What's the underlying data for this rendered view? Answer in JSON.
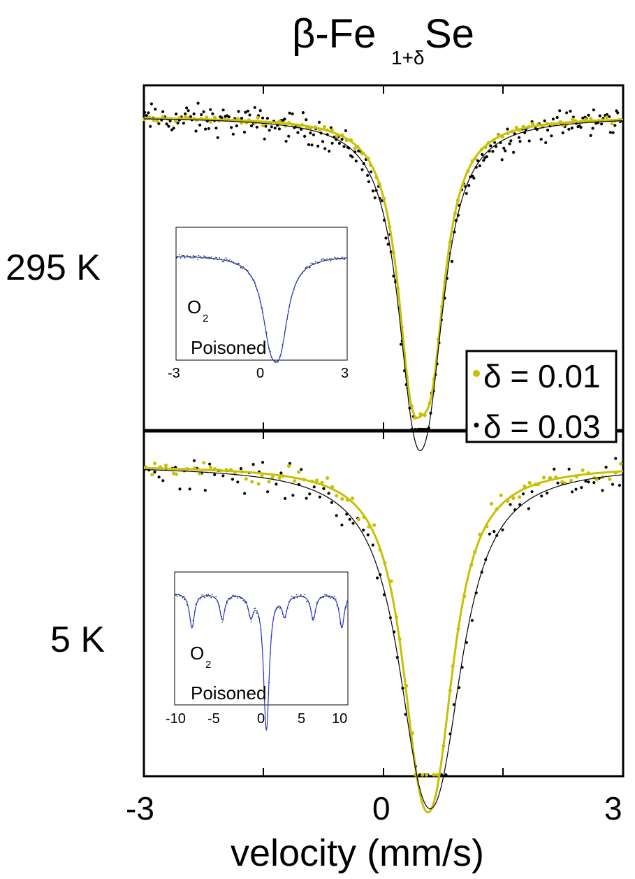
{
  "title": {
    "prefix": "β-Fe",
    "subscript": "1+δ",
    "suffix": "Se"
  },
  "panels": {
    "top_label": "295 K",
    "bottom_label": "5 K"
  },
  "x_axis": {
    "label": "velocity (mm/s)",
    "ticks": [
      "-3",
      "0",
      "3"
    ]
  },
  "legend": {
    "entries": [
      "δ = 0.01",
      "δ = 0.03"
    ]
  },
  "inset_top": {
    "label_gas": "O",
    "label_sub": "2",
    "label_word": "Poisoned",
    "ticks": [
      "-3",
      "0",
      "3"
    ]
  },
  "inset_bottom": {
    "label_gas": "O",
    "label_sub": "2",
    "label_word": "Poisoned",
    "ticks": [
      "-10",
      "-5",
      "0",
      "5",
      "10"
    ]
  },
  "colors": {
    "yellow": "#c8c000",
    "black": "#000000",
    "blue": "#2233cc"
  },
  "chart_data": [
    {
      "type": "scatter",
      "panel": "295 K",
      "xlabel": "velocity (mm/s)",
      "xlim": [
        -3,
        3
      ],
      "ylim": [
        0.5,
        1.05
      ],
      "grid": false,
      "legend_position": "bottom-right",
      "series": [
        {
          "name": "δ = 0.01",
          "color": "#c8c000",
          "model": "doublet",
          "baseline": 1.0,
          "centers": [
            0.35,
            0.6
          ],
          "depths": [
            0.33,
            0.3
          ],
          "width": 0.22
        },
        {
          "name": "δ = 0.03",
          "color": "#000000",
          "model": "doublet",
          "baseline": 1.0,
          "centers": [
            0.37,
            0.57
          ],
          "depths": [
            0.32,
            0.29
          ],
          "width": 0.26
        }
      ]
    },
    {
      "type": "scatter",
      "panel": "5 K",
      "xlabel": "velocity (mm/s)",
      "xlim": [
        -3,
        3
      ],
      "ylim": [
        0.55,
        1.05
      ],
      "grid": false,
      "series": [
        {
          "name": "δ = 0.01",
          "color": "#c8c000",
          "model": "doublet",
          "baseline": 1.0,
          "centers": [
            0.45,
            0.67
          ],
          "depths": [
            0.29,
            0.28
          ],
          "width": 0.3
        },
        {
          "name": "δ = 0.03",
          "color": "#000000",
          "model": "doublet",
          "baseline": 1.0,
          "centers": [
            0.45,
            0.72
          ],
          "depths": [
            0.28,
            0.28
          ],
          "width": 0.38
        }
      ]
    },
    {
      "type": "line",
      "panel": "inset 295 K",
      "xlim": [
        -3,
        3
      ],
      "series": [
        {
          "color": "#2233cc",
          "model": "doublet",
          "baseline": 1.0,
          "centers": [
            0.3,
            0.65
          ],
          "depths": [
            0.45,
            0.5
          ],
          "width": 0.35
        }
      ]
    },
    {
      "type": "line",
      "panel": "inset 5 K",
      "xlim": [
        -10,
        10
      ],
      "series": [
        {
          "color": "#2233cc",
          "model": "sextet_plus_doublet",
          "baseline": 1.0,
          "centers": [
            -8.0,
            -4.5,
            -1.2,
            2.7,
            6.0,
            9.3,
            0.5,
            0.7
          ],
          "depths": [
            0.2,
            0.15,
            0.12,
            0.12,
            0.15,
            0.2,
            0.45,
            0.4
          ],
          "width": 0.35
        }
      ]
    }
  ]
}
